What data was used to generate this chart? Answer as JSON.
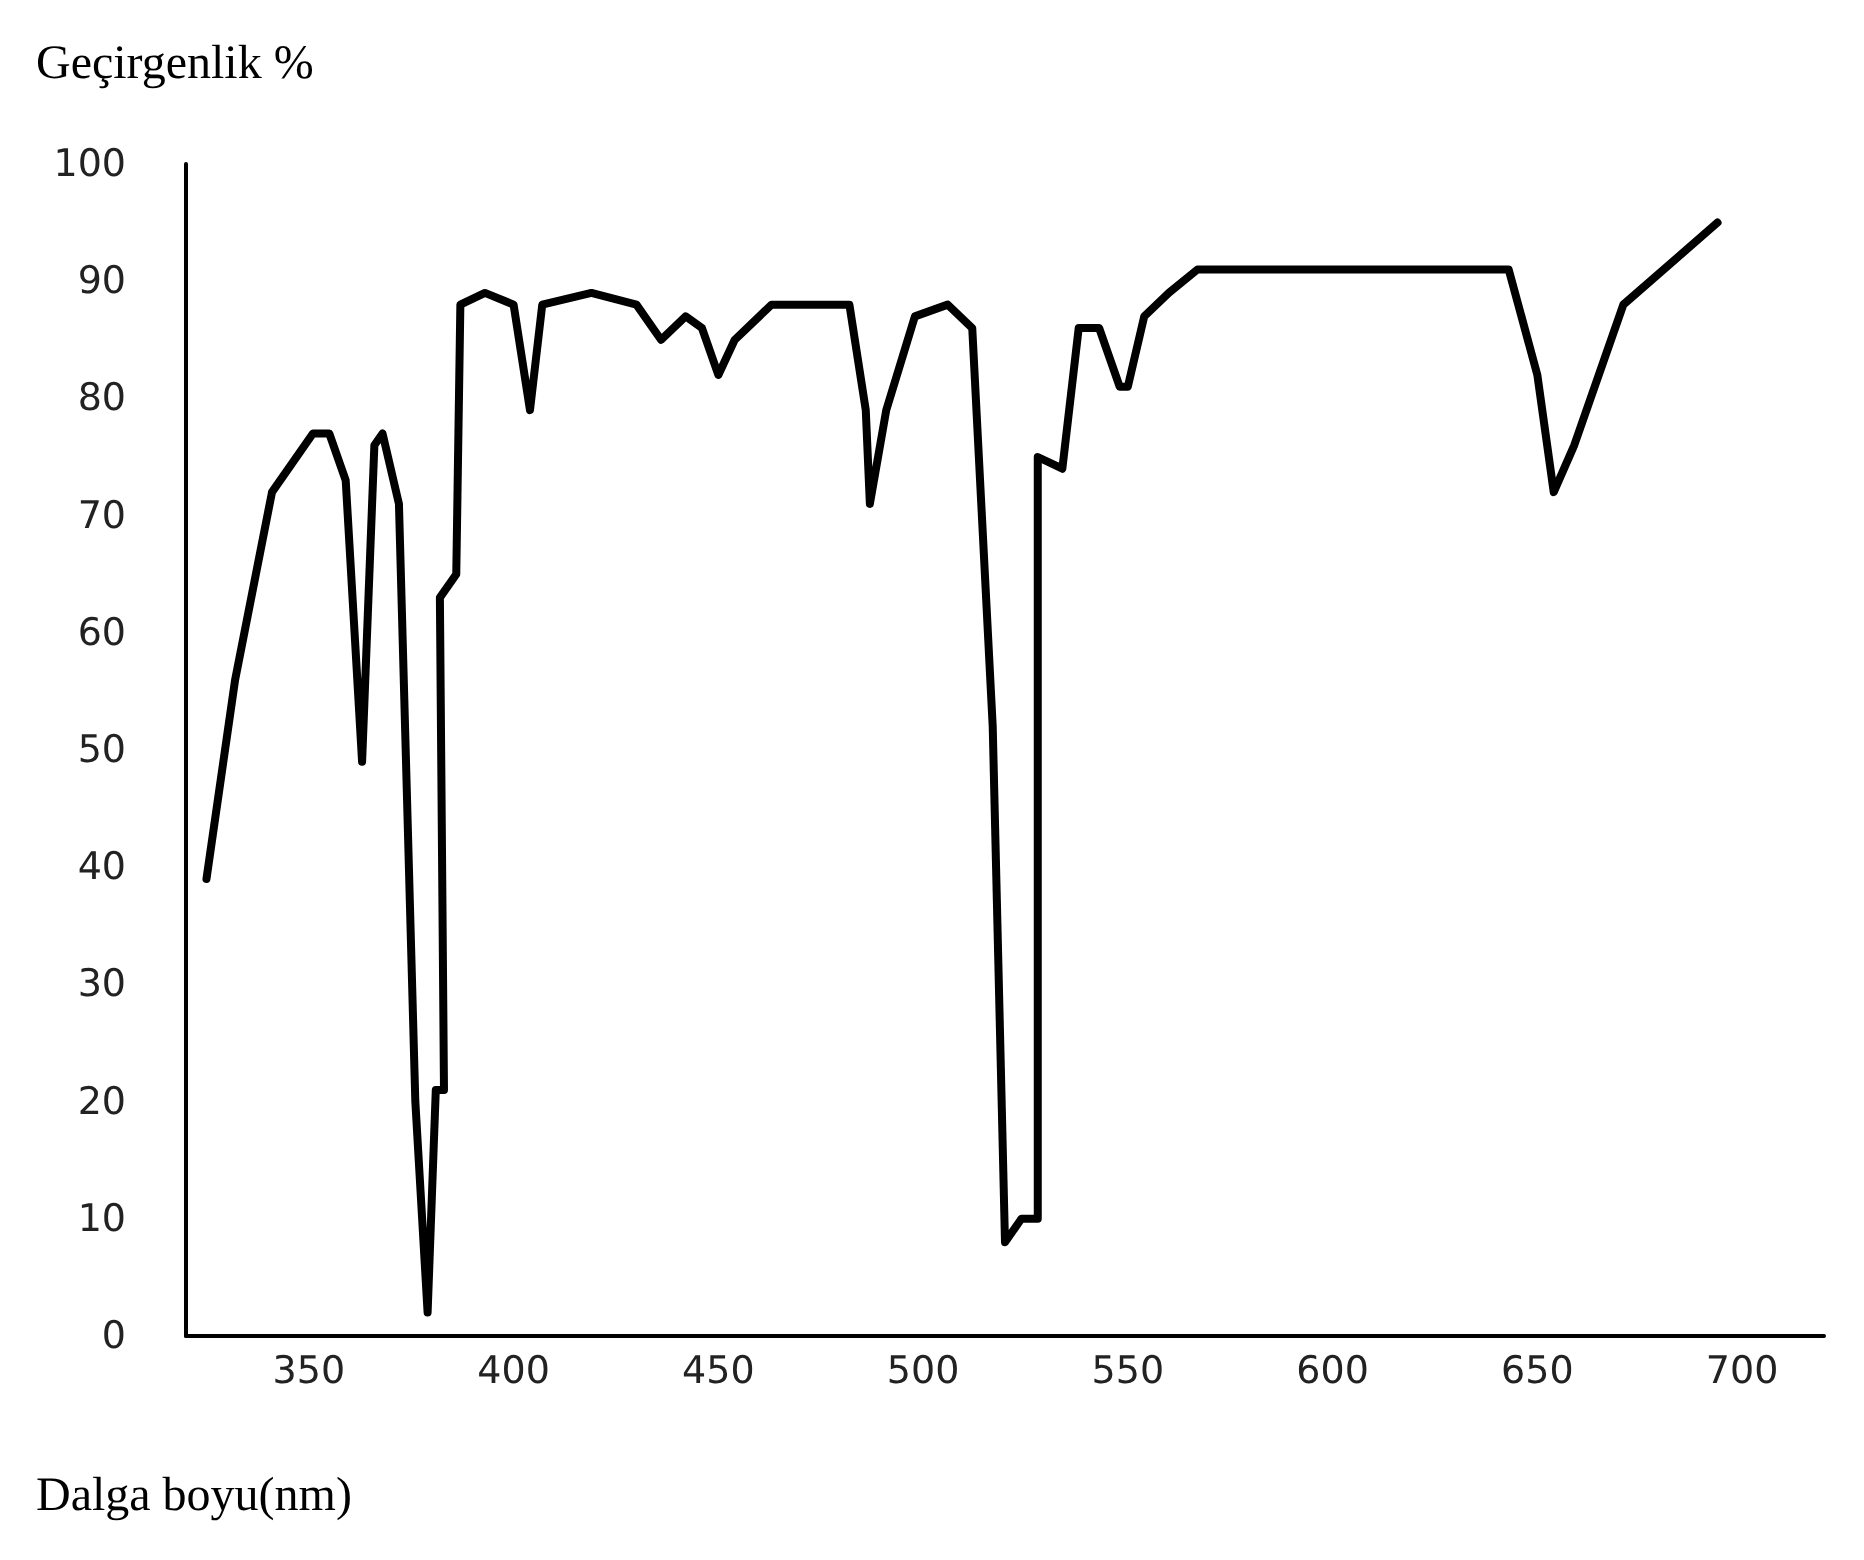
{
  "chart_data": {
    "type": "line",
    "xlabel": "Dalga boyu(nm)",
    "ylabel": "Geçirgenlik %",
    "xlim": [
      320,
      720
    ],
    "xticks": [
      350,
      400,
      450,
      500,
      550,
      600,
      650,
      700
    ],
    "ylim": [
      0,
      100
    ],
    "yticks": [
      0,
      10,
      20,
      30,
      40,
      50,
      60,
      70,
      80,
      90,
      100
    ],
    "grid": false,
    "marker": "none",
    "line_style": "solid",
    "series": [
      {
        "color": "#000000",
        "x": [
          325,
          332,
          341,
          351,
          355,
          359,
          363,
          366,
          368,
          372,
          376,
          379,
          381,
          383,
          382,
          386,
          387,
          393,
          400,
          404,
          407,
          419,
          430,
          436,
          442,
          446,
          450,
          454,
          463,
          482,
          486,
          487,
          491,
          498,
          506,
          512,
          517,
          520,
          524,
          528,
          528,
          534,
          538,
          543,
          548,
          550,
          554,
          560,
          567,
          610,
          643,
          650,
          654,
          659,
          671,
          694
        ],
        "values": [
          39,
          56,
          72,
          77,
          77,
          73,
          49,
          76,
          77,
          71,
          20,
          2,
          21,
          21,
          63,
          65,
          88,
          89,
          88,
          79,
          88,
          89,
          88,
          85,
          87,
          86,
          82,
          85,
          88,
          88,
          79,
          71,
          79,
          87,
          88,
          86,
          52,
          8,
          10,
          10,
          75,
          74,
          86,
          86,
          81,
          81,
          87,
          89,
          91,
          91,
          91,
          82,
          72,
          76,
          88,
          95
        ]
      }
    ]
  }
}
